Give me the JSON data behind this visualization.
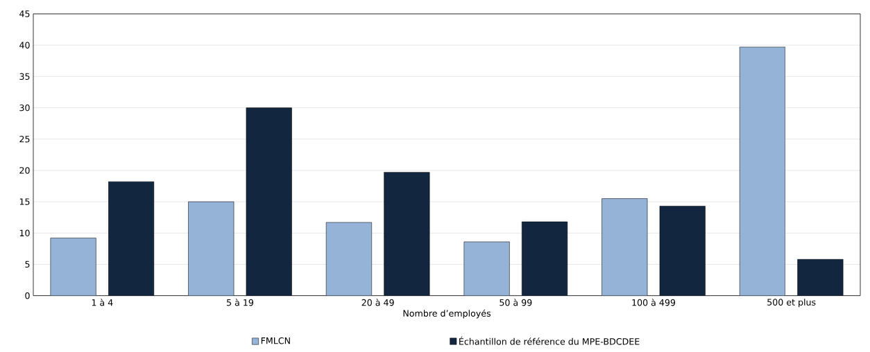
{
  "chart_data": {
    "type": "bar",
    "xlabel": "Nombre d’employés",
    "categories": [
      "1 à 4",
      "5 à 19",
      "20 à 49",
      "50 à 99",
      "100 à 499",
      "500 et plus"
    ],
    "series": [
      {
        "name": "FMLCN",
        "color": "#95b3d7",
        "values": [
          9.2,
          15.0,
          11.7,
          8.6,
          15.5,
          39.7
        ]
      },
      {
        "name": "Échantillon de référence du MPE-BDCDEE",
        "color": "#12263f",
        "values": [
          18.2,
          30.0,
          19.7,
          11.8,
          14.3,
          5.8
        ]
      }
    ],
    "ylim": [
      0,
      45
    ],
    "yticks": [
      0,
      5,
      10,
      15,
      20,
      25,
      30,
      35,
      40,
      45
    ],
    "grid": "y",
    "legend": "bottom"
  }
}
